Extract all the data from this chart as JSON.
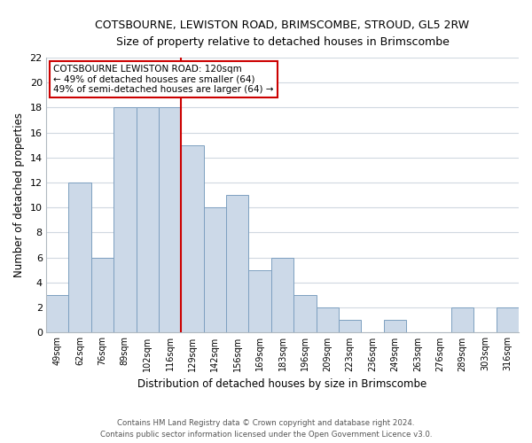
{
  "title": "COTSBOURNE, LEWISTON ROAD, BRIMSCOMBE, STROUD, GL5 2RW",
  "subtitle": "Size of property relative to detached houses in Brimscombe",
  "xlabel": "Distribution of detached houses by size in Brimscombe",
  "ylabel": "Number of detached properties",
  "bar_color": "#ccd9e8",
  "bar_edge_color": "#7da0c0",
  "vline_color": "#cc0000",
  "categories": [
    "49sqm",
    "62sqm",
    "76sqm",
    "89sqm",
    "102sqm",
    "116sqm",
    "129sqm",
    "142sqm",
    "156sqm",
    "169sqm",
    "183sqm",
    "196sqm",
    "209sqm",
    "223sqm",
    "236sqm",
    "249sqm",
    "263sqm",
    "276sqm",
    "289sqm",
    "303sqm",
    "316sqm"
  ],
  "values": [
    3,
    12,
    6,
    18,
    18,
    18,
    15,
    10,
    11,
    5,
    6,
    3,
    2,
    1,
    0,
    1,
    0,
    0,
    2,
    0,
    2
  ],
  "vline_index": 5.5,
  "ylim": [
    0,
    22
  ],
  "yticks": [
    0,
    2,
    4,
    6,
    8,
    10,
    12,
    14,
    16,
    18,
    20,
    22
  ],
  "annotation_title": "COTSBOURNE LEWISTON ROAD: 120sqm",
  "annotation_line1": "← 49% of detached houses are smaller (64)",
  "annotation_line2": "49% of semi-detached houses are larger (64) →",
  "footer_line1": "Contains HM Land Registry data © Crown copyright and database right 2024.",
  "footer_line2": "Contains public sector information licensed under the Open Government Licence v3.0.",
  "grid_color": "#d0d8e0",
  "background_color": "#ffffff"
}
